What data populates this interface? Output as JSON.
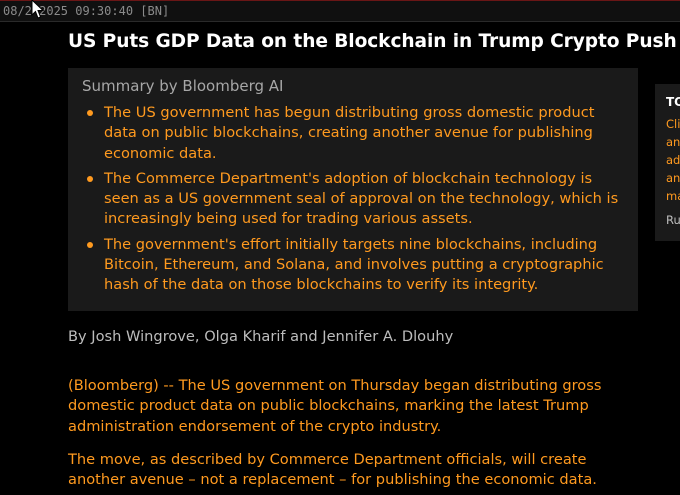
{
  "header": {
    "timestamp": "08/2 2025 09:30:40 [BN]"
  },
  "article": {
    "headline": "US Puts GDP Data on the Blockchain in Trump Crypto Push",
    "summary": {
      "title": "Summary by Bloomberg AI",
      "items": [
        "The US government has begun distributing gross domestic product data on public blockchains, creating another avenue for publishing economic data.",
        "The Commerce Department's adoption of blockchain technology is seen as a US government seal of approval on the technology, which is increasingly being used for trading various assets.",
        "The government's effort initially targets nine blockchains, including Bitcoin, Ethereum, and Solana, and involves putting a cryptographic hash of the data on those blockchains to verify its integrity."
      ]
    },
    "byline": "By Josh Wingrove, Olga Kharif and Jennifer A. Dlouhy",
    "paragraphs": [
      "(Bloomberg) -- The US government on Thursday began distributing gross domestic product data on public blockchains, marking the latest Trump administration endorsement of the crypto industry.",
      "The move, as described by Commerce Department officials, will create another avenue – not a replacement – for publishing the economic data."
    ]
  },
  "side_panel": {
    "title": "TO",
    "lines": [
      "Cli",
      "an",
      "ad",
      "an",
      "ma"
    ],
    "footer": "Ru"
  },
  "colors": {
    "background": "#000000",
    "headline": "#ffffff",
    "accent_orange": "#ff9a1f",
    "summary_bg": "#1a1a1a",
    "muted_text": "#a7a7a7"
  },
  "icons": {
    "cursor": "mouse-pointer-icon"
  }
}
